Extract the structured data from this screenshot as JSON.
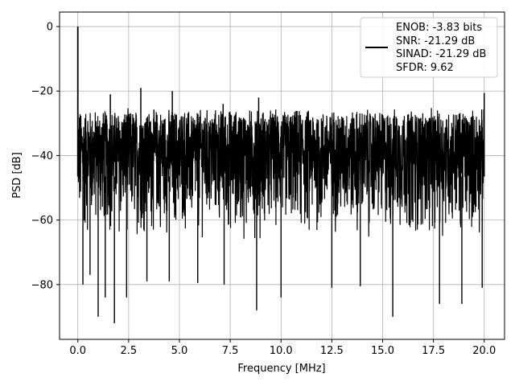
{
  "chart_data": {
    "type": "line",
    "xlabel": "Frequency [MHz]",
    "ylabel": "PSD [dB]",
    "xlim": [
      -0.9,
      21.0
    ],
    "ylim": [
      -97,
      4.5
    ],
    "xticks": [
      0.0,
      2.5,
      5.0,
      7.5,
      10.0,
      12.5,
      15.0,
      17.5,
      20.0
    ],
    "xtick_labels": [
      "0.0",
      "2.5",
      "5.0",
      "7.5",
      "10.0",
      "12.5",
      "15.0",
      "17.5",
      "20.0"
    ],
    "yticks": [
      0,
      -20,
      -40,
      -60,
      -80
    ],
    "ytick_labels": [
      "0",
      "−20",
      "−40",
      "−60",
      "−80"
    ],
    "grid": true,
    "legend_position": "top-right",
    "legend_lines": [
      "ENOB: -3.83 bits",
      "SNR: -21.29 dB",
      "SINAD: -21.29 dB",
      "SFDR: 9.62"
    ],
    "line_color": "#000000",
    "series": [
      {
        "x_range": [
          0.0,
          20.0
        ],
        "noise_floor_upper": -27,
        "noise_floor_lower": -66,
        "fundamental": {
          "x": 0.0,
          "y": 0.0
        },
        "spurs": [
          {
            "x": 0.0,
            "y": -28.5
          },
          {
            "x": 1.6,
            "y": -21.0
          },
          {
            "x": 3.1,
            "y": -19.0
          },
          {
            "x": 4.65,
            "y": -20.0
          },
          {
            "x": 7.15,
            "y": -24.0
          },
          {
            "x": 8.9,
            "y": -22.0
          },
          {
            "x": 20.0,
            "y": -20.6
          }
        ],
        "notches": [
          {
            "x": 0.25,
            "y": -80.0
          },
          {
            "x": 0.6,
            "y": -77.0
          },
          {
            "x": 1.0,
            "y": -90.0
          },
          {
            "x": 1.35,
            "y": -84.0
          },
          {
            "x": 1.8,
            "y": -92.0
          },
          {
            "x": 2.4,
            "y": -84.0
          },
          {
            "x": 3.4,
            "y": -79.0
          },
          {
            "x": 4.5,
            "y": -79.0
          },
          {
            "x": 5.9,
            "y": -79.5
          },
          {
            "x": 7.2,
            "y": -80.0
          },
          {
            "x": 8.8,
            "y": -88.0
          },
          {
            "x": 10.0,
            "y": -84.0
          },
          {
            "x": 12.5,
            "y": -81.0
          },
          {
            "x": 13.9,
            "y": -80.5
          },
          {
            "x": 15.5,
            "y": -90.0
          },
          {
            "x": 17.8,
            "y": -86.0
          },
          {
            "x": 18.9,
            "y": -86.0
          },
          {
            "x": 19.9,
            "y": -81.0
          }
        ]
      }
    ]
  }
}
